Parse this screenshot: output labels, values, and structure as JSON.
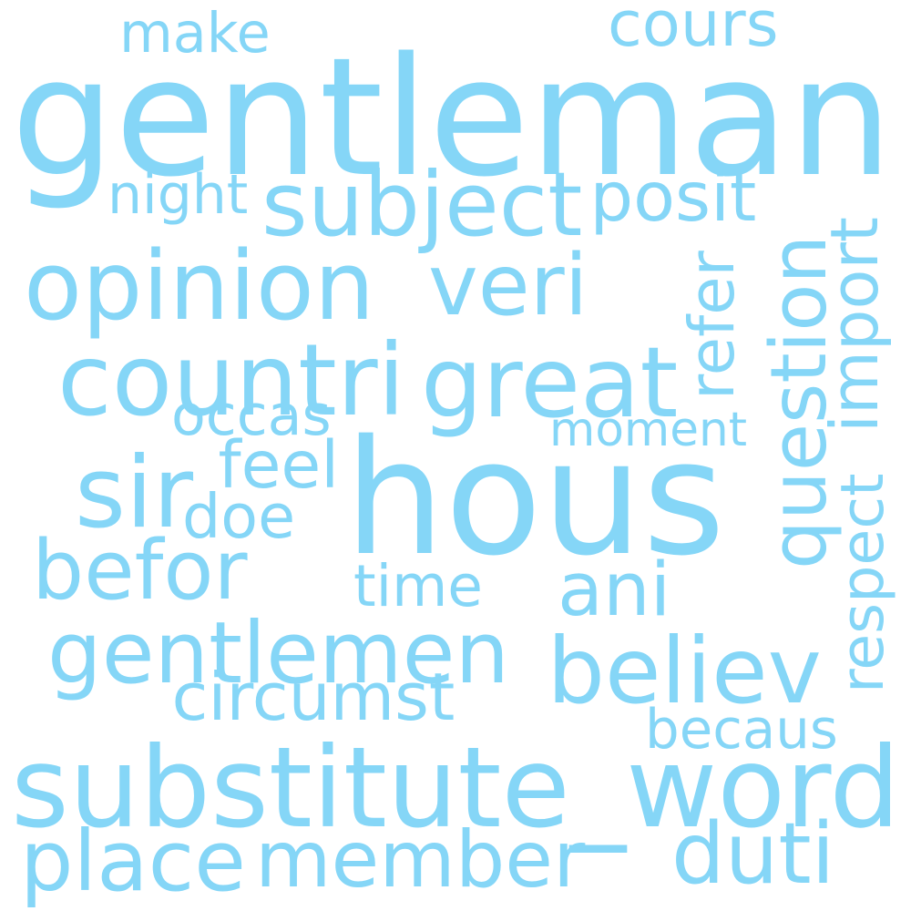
{
  "word_cloud": {
    "color": "#85d6f7",
    "words": [
      {
        "text": "gentleman",
        "orientation": "horizontal"
      },
      {
        "text": "hous",
        "orientation": "horizontal"
      },
      {
        "text": "substitute_word",
        "orientation": "horizontal"
      },
      {
        "text": "cours",
        "orientation": "horizontal"
      },
      {
        "text": "make",
        "orientation": "horizontal"
      },
      {
        "text": "night",
        "orientation": "horizontal"
      },
      {
        "text": "subject",
        "orientation": "horizontal"
      },
      {
        "text": "posit",
        "orientation": "horizontal"
      },
      {
        "text": "opinion",
        "orientation": "horizontal"
      },
      {
        "text": "veri",
        "orientation": "horizontal"
      },
      {
        "text": "countri",
        "orientation": "horizontal"
      },
      {
        "text": "great",
        "orientation": "horizontal"
      },
      {
        "text": "refer",
        "orientation": "vertical"
      },
      {
        "text": "question",
        "orientation": "vertical"
      },
      {
        "text": "import",
        "orientation": "vertical"
      },
      {
        "text": "occas",
        "orientation": "horizontal"
      },
      {
        "text": "moment",
        "orientation": "horizontal"
      },
      {
        "text": "sir",
        "orientation": "horizontal"
      },
      {
        "text": "feel",
        "orientation": "horizontal"
      },
      {
        "text": "doe",
        "orientation": "horizontal"
      },
      {
        "text": "befor",
        "orientation": "horizontal"
      },
      {
        "text": "respect",
        "orientation": "vertical"
      },
      {
        "text": "time",
        "orientation": "horizontal"
      },
      {
        "text": "ani",
        "orientation": "horizontal"
      },
      {
        "text": "gentlemen",
        "orientation": "horizontal"
      },
      {
        "text": "believ",
        "orientation": "horizontal"
      },
      {
        "text": "circumst",
        "orientation": "horizontal"
      },
      {
        "text": "becaus",
        "orientation": "horizontal"
      },
      {
        "text": "place",
        "orientation": "horizontal"
      },
      {
        "text": "member",
        "orientation": "horizontal"
      },
      {
        "text": "duti",
        "orientation": "horizontal"
      }
    ]
  }
}
